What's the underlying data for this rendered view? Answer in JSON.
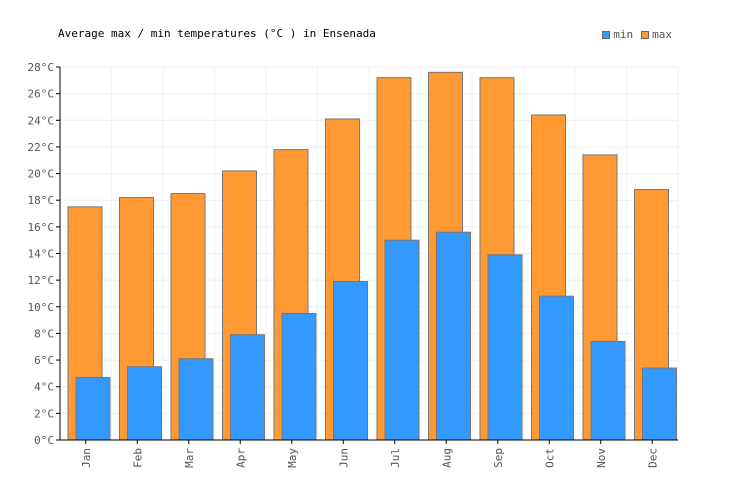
{
  "chart_data": {
    "type": "bar",
    "title": "Average max / min temperatures (°C ) in Ensenada",
    "categories": [
      "Jan",
      "Feb",
      "Mar",
      "Apr",
      "May",
      "Jun",
      "Jul",
      "Aug",
      "Sep",
      "Oct",
      "Nov",
      "Dec"
    ],
    "series": [
      {
        "name": "max",
        "color": "#ff9933",
        "values": [
          17.5,
          18.2,
          18.5,
          20.2,
          21.8,
          24.1,
          27.2,
          27.6,
          27.2,
          24.4,
          21.4,
          18.8
        ]
      },
      {
        "name": "min",
        "color": "#3399ff",
        "values": [
          4.7,
          5.5,
          6.1,
          7.9,
          9.5,
          11.9,
          15.0,
          15.6,
          13.9,
          10.8,
          7.4,
          5.4
        ]
      }
    ],
    "y_ticks": [
      "0°C",
      "2°C",
      "4°C",
      "6°C",
      "8°C",
      "10°C",
      "12°C",
      "14°C",
      "16°C",
      "18°C",
      "20°C",
      "22°C",
      "24°C",
      "26°C",
      "28°C"
    ],
    "ylim": [
      0,
      28
    ],
    "grid": true,
    "legend": {
      "position": "top-right",
      "items": [
        {
          "label": "min",
          "color": "#3399ff"
        },
        {
          "label": "max",
          "color": "#ff9933"
        }
      ]
    }
  }
}
